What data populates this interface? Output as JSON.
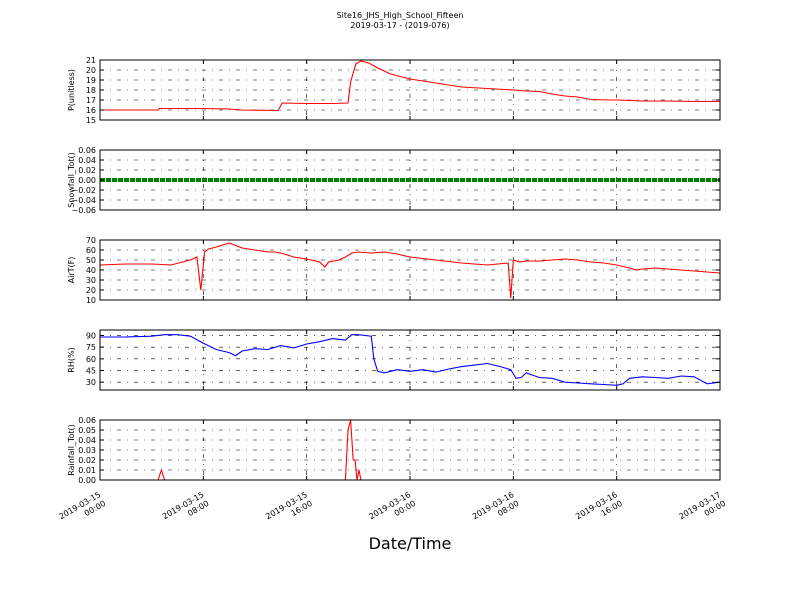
{
  "figure": {
    "title_line1": "Site16_JHS_High_School_Fifteen",
    "title_line2": "2019-03-17 - (2019-076)",
    "xlabel": "Date/Time"
  },
  "time_ticks": [
    "2019-03-15\n00:00",
    "2019-03-15\n08:00",
    "2019-03-15\n16:00",
    "2019-03-16\n00:00",
    "2019-03-16\n08:00",
    "2019-03-16\n16:00",
    "2019-03-17\n00:00"
  ],
  "colors": {
    "red": "#ff0000",
    "green": "#008000",
    "blue": "#0000ff"
  },
  "chart_data": [
    {
      "type": "line",
      "ylabel": "P(unitless)",
      "xlim": [
        0,
        48
      ],
      "ylim": [
        15,
        21
      ],
      "yticks": [
        "15",
        "16",
        "17",
        "18",
        "19",
        "20",
        "21"
      ],
      "grid": true,
      "series": [
        {
          "color": "#ff0000",
          "x": [
            0,
            2,
            4.5,
            4.6,
            8,
            10,
            11,
            13.8,
            14.1,
            16,
            18,
            19.2,
            19.4,
            19.8,
            20.2,
            20.8,
            21.5,
            22.5,
            24,
            26,
            28,
            30,
            32,
            33,
            34,
            35,
            36,
            37,
            38,
            39.5,
            40,
            41,
            42,
            44,
            46,
            48
          ],
          "y": [
            16,
            16,
            16,
            16.15,
            16.15,
            16.1,
            16,
            15.95,
            16.7,
            16.65,
            16.65,
            16.7,
            18.8,
            20.6,
            20.9,
            20.7,
            20.2,
            19.6,
            19.1,
            18.7,
            18.3,
            18.15,
            18,
            17.9,
            17.85,
            17.6,
            17.4,
            17.3,
            17.05,
            17,
            17,
            16.95,
            16.9,
            16.9,
            16.85,
            16.85
          ]
        }
      ]
    },
    {
      "type": "line",
      "ylabel": "Snowfall_Tot()",
      "xlim": [
        0,
        48
      ],
      "ylim": [
        -0.06,
        0.06
      ],
      "yticks": [
        "−0.06",
        "−0.04",
        "−0.02",
        "0.00",
        "0.02",
        "0.04",
        "0.06"
      ],
      "grid": true,
      "series": [
        {
          "color": "#008000",
          "x": [
            0,
            48
          ],
          "y": [
            0,
            0
          ]
        }
      ]
    },
    {
      "type": "line",
      "ylabel": "AirT(F)",
      "xlim": [
        0,
        48
      ],
      "ylim": [
        10,
        70
      ],
      "yticks": [
        "10",
        "20",
        "30",
        "40",
        "50",
        "60",
        "70"
      ],
      "grid": true,
      "series": [
        {
          "color": "#ff0000",
          "x": [
            0,
            2,
            4,
            5.5,
            7,
            7.5,
            7.8,
            8.1,
            8.4,
            9,
            10,
            11,
            12,
            13,
            13.5,
            14,
            15,
            16,
            17,
            17.4,
            17.7,
            18.5,
            19,
            19.5,
            20,
            21,
            22,
            23,
            24,
            26,
            28,
            30,
            31.6,
            31.8,
            32,
            32.5,
            33,
            34,
            35,
            36,
            37,
            38,
            39,
            40,
            41,
            41.5,
            42,
            43,
            44,
            45,
            46,
            47,
            48
          ],
          "y": [
            45,
            46,
            46,
            45,
            50,
            53,
            20,
            58,
            61,
            63,
            67,
            62,
            60,
            58,
            58,
            57,
            53,
            51,
            48,
            43,
            48,
            50,
            53,
            57,
            58,
            57,
            58,
            56,
            53,
            50,
            47,
            45,
            47,
            12,
            50,
            48,
            49,
            49,
            50,
            51,
            50,
            48,
            47,
            45,
            42,
            40,
            41,
            42,
            41,
            40,
            39,
            38,
            37
          ]
        }
      ]
    },
    {
      "type": "line",
      "ylabel": "RH(%)",
      "xlim": [
        0,
        48
      ],
      "ylim": [
        20,
        97
      ],
      "yticks": [
        "30",
        "45",
        "60",
        "75",
        "90"
      ],
      "grid": true,
      "series": [
        {
          "color": "#0000ff",
          "x": [
            0,
            2,
            4,
            5,
            6,
            7,
            8,
            9,
            10,
            10.5,
            11,
            12,
            13,
            14,
            15,
            16,
            17,
            18,
            19,
            19.5,
            20,
            21,
            21.2,
            21.5,
            22,
            23,
            24,
            25,
            26,
            27,
            28,
            29,
            30,
            31,
            31.8,
            32.2,
            32.6,
            33,
            34,
            35,
            36,
            37,
            38,
            39,
            40,
            40.5,
            41,
            42,
            43,
            44,
            45,
            46,
            47,
            47.5,
            48
          ],
          "y": [
            88,
            88,
            89,
            91,
            91,
            89,
            80,
            72,
            68,
            64,
            70,
            73,
            72,
            77,
            74,
            79,
            82,
            86,
            84,
            91,
            91,
            89,
            60,
            44,
            42,
            46,
            44,
            46,
            43,
            47,
            50,
            52,
            54,
            50,
            46,
            35,
            36,
            42,
            36,
            35,
            30,
            29,
            28,
            27,
            26,
            28,
            35,
            37,
            36,
            35,
            38,
            37,
            28,
            29,
            30
          ]
        }
      ]
    },
    {
      "type": "line",
      "ylabel": "Rainfall_Tot()",
      "xlim": [
        0,
        48
      ],
      "ylim": [
        0,
        0.06
      ],
      "yticks": [
        "0.00",
        "0.01",
        "0.02",
        "0.03",
        "0.04",
        "0.05",
        "0.06"
      ],
      "grid": true,
      "series": [
        {
          "color": "#ff0000",
          "x": [
            0,
            4.5,
            4.75,
            5,
            19,
            19.2,
            19.4,
            19.6,
            19.75,
            19.9,
            20.05,
            20.2,
            20.35,
            20.5,
            20.65,
            48
          ],
          "y": [
            0,
            0,
            0.01,
            0,
            0,
            0.05,
            0.06,
            0.02,
            0.02,
            0,
            0.01,
            0,
            0,
            0,
            0,
            0
          ]
        }
      ]
    }
  ]
}
